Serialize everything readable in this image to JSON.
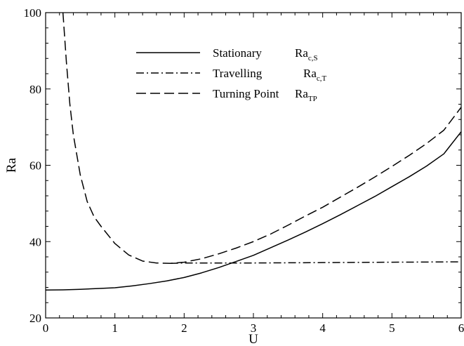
{
  "chart_data": {
    "type": "line",
    "title": "",
    "xlabel": "U",
    "ylabel": "Ra",
    "xlim": [
      0,
      6
    ],
    "ylim": [
      20,
      100
    ],
    "xticks": [
      0,
      1,
      2,
      3,
      4,
      5,
      6
    ],
    "yticks": [
      20,
      40,
      60,
      80,
      100
    ],
    "legend_position": "top-center",
    "series": [
      {
        "name": "Stationary",
        "symbol": "Ra",
        "symbol_sub": "c,S",
        "dash": "solid",
        "x": [
          0,
          0.25,
          0.5,
          0.75,
          1.0,
          1.25,
          1.5,
          1.75,
          2.0,
          2.25,
          2.5,
          2.75,
          3.0,
          3.25,
          3.5,
          3.75,
          4.0,
          4.25,
          4.5,
          4.75,
          5.0,
          5.25,
          5.5,
          5.75,
          6.0
        ],
        "y": [
          27.3,
          27.35,
          27.5,
          27.7,
          27.9,
          28.4,
          29.0,
          29.7,
          30.6,
          31.8,
          33.2,
          34.8,
          36.4,
          38.4,
          40.4,
          42.5,
          44.7,
          47.0,
          49.4,
          51.8,
          54.4,
          57.0,
          59.8,
          63.0,
          68.8
        ]
      },
      {
        "name": "Travelling",
        "symbol": "Ra",
        "symbol_sub": "c,T",
        "dash": "dashdot",
        "x": [
          1.8,
          2.0,
          2.5,
          3.0,
          3.5,
          4.0,
          4.5,
          5.0,
          5.5,
          6.0
        ],
        "y": [
          34.3,
          34.4,
          34.4,
          34.4,
          34.45,
          34.5,
          34.55,
          34.6,
          34.65,
          34.7
        ]
      },
      {
        "name": "Turning Point",
        "symbol": "Ra",
        "symbol_sub": "TP",
        "dash": "dashed",
        "x": [
          0.25,
          0.3,
          0.35,
          0.4,
          0.5,
          0.6,
          0.7,
          0.8,
          1.0,
          1.2,
          1.4,
          1.6,
          1.8,
          2.0,
          2.25,
          2.5,
          2.75,
          3.0,
          3.25,
          3.5,
          3.75,
          4.0,
          4.25,
          4.5,
          4.75,
          5.0,
          5.25,
          5.5,
          5.75,
          6.0
        ],
        "y": [
          100,
          87.0,
          76.0,
          68.0,
          57.5,
          50.5,
          46.5,
          44.0,
          39.5,
          36.5,
          34.9,
          34.4,
          34.3,
          34.6,
          35.5,
          36.8,
          38.3,
          40.0,
          42.0,
          44.3,
          46.7,
          49.0,
          51.6,
          54.2,
          56.9,
          59.7,
          62.6,
          65.7,
          69.2,
          75.2
        ]
      }
    ]
  }
}
